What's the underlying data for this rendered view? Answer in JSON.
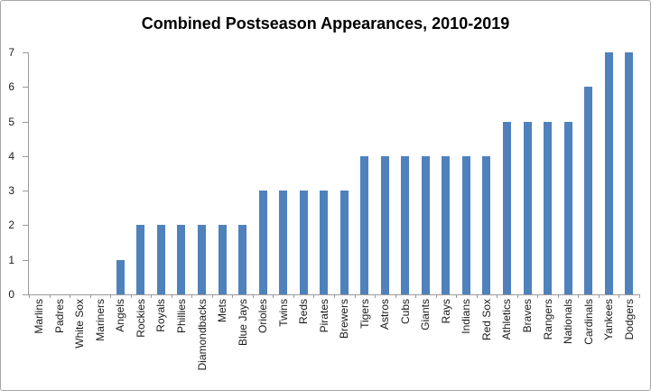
{
  "window": {
    "background": "#FFFFFF",
    "border_color": "#A6A6A6"
  },
  "chart_data": {
    "type": "bar",
    "title": "Combined Postseason Appearances, 2010-2019",
    "categories": [
      "Marlins",
      "Padres",
      "White Sox",
      "Mariners",
      "Angels",
      "Rockies",
      "Royals",
      "Phillies",
      "Diamondbacks",
      "Mets",
      "Blue Jays",
      "Orioles",
      "Twins",
      "Reds",
      "Pirates",
      "Brewers",
      "Tigers",
      "Astros",
      "Cubs",
      "Giants",
      "Rays",
      "Indians",
      "Red Sox",
      "Athletics",
      "Braves",
      "Rangers",
      "Nationals",
      "Cardinals",
      "Yankees",
      "Dodgers"
    ],
    "values": [
      0,
      0,
      0,
      0,
      1,
      2,
      2,
      2,
      2,
      2,
      2,
      3,
      3,
      3,
      3,
      3,
      4,
      4,
      4,
      4,
      4,
      4,
      4,
      5,
      5,
      5,
      5,
      6,
      7,
      7
    ],
    "xlabel": "",
    "ylabel": "",
    "ylim": [
      0,
      7
    ],
    "yticks": [
      0,
      1,
      2,
      3,
      4,
      5,
      6,
      7
    ],
    "grid": false,
    "legend": "none",
    "bar_color": "#4F81BD",
    "axis_color": "#9A9A9A",
    "tick_label_color": "#1A1A1A",
    "title_color": "#000000"
  }
}
